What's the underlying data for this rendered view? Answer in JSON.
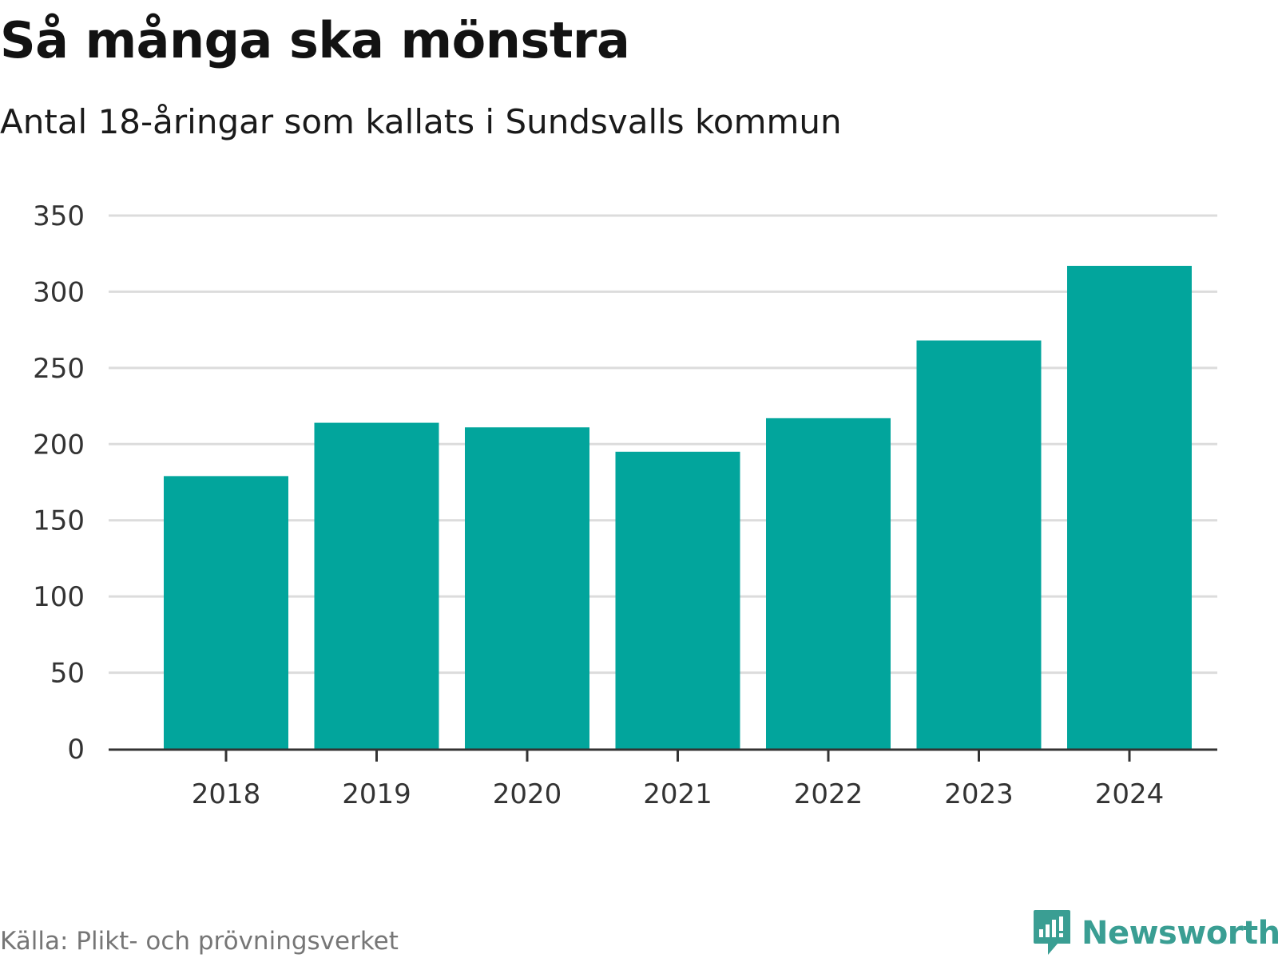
{
  "header": {
    "title": "Så många ska mönstra",
    "subtitle": "Antal 18-åringar som kallats i Sundsvalls kommun"
  },
  "footer": {
    "source": "Källa: Plikt- och prövningsverket",
    "brand_name": "Newsworthy",
    "brand_icon": "newsworthy-logo-icon"
  },
  "colors": {
    "bar": "#02a59c",
    "grid": "#dcdcdc",
    "axis": "#333333",
    "brand": "#3a9e93"
  },
  "chart_data": {
    "type": "bar",
    "title": "Så många ska mönstra",
    "subtitle": "Antal 18-åringar som kallats i Sundsvalls kommun",
    "xlabel": "",
    "ylabel": "",
    "categories": [
      "2018",
      "2019",
      "2020",
      "2021",
      "2022",
      "2023",
      "2024"
    ],
    "values": [
      179,
      214,
      211,
      195,
      217,
      268,
      317
    ],
    "ylim": [
      0,
      350
    ],
    "yticks": [
      0,
      50,
      100,
      150,
      200,
      250,
      300,
      350
    ],
    "grid": true,
    "legend": "none"
  }
}
